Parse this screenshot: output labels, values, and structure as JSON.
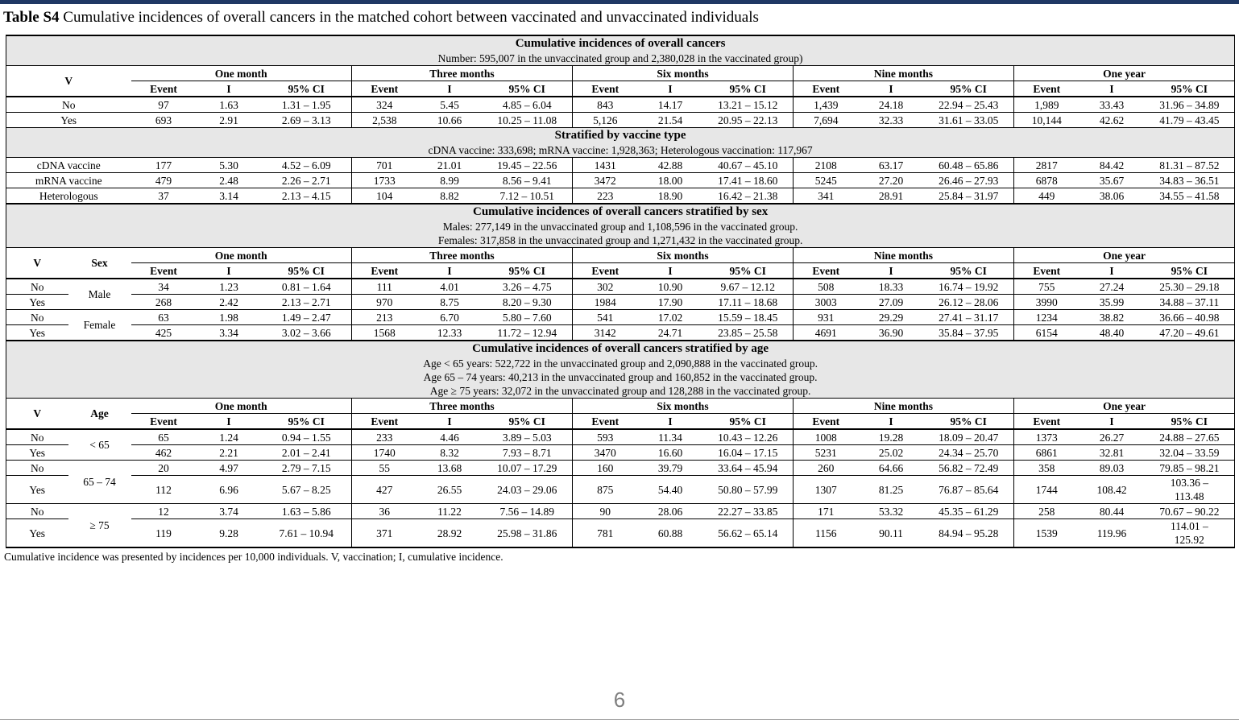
{
  "page": {
    "title_bold": "Table S4",
    "title_rest": " Cumulative incidences of overall cancers in the matched cohort between vaccinated and unvaccinated individuals",
    "footnote": "Cumulative incidence was presented by incidences per 10,000 individuals. V, vaccination; I, cumulative incidence.",
    "page_number": "6",
    "accent_bar_color": "#1f3864",
    "band_background": "#e7e7e7"
  },
  "table": {
    "time_groups": [
      "One month",
      "Three months",
      "Six months",
      "Nine months",
      "One year"
    ],
    "sub_columns": [
      "Event",
      "I",
      "95% CI"
    ],
    "sections": [
      {
        "band": {
          "title": "Cumulative incidences of overall cancers",
          "lines": [
            "Number: 595,007 in the unvaccinated group and 2,380,028 in the vaccinated group)"
          ]
        },
        "header": {
          "labels": [
            "V"
          ]
        },
        "rows": [
          {
            "label": "No",
            "cells": [
              "97",
              "1.63",
              "1.31 – 1.95",
              "324",
              "5.45",
              "4.85 – 6.04",
              "843",
              "14.17",
              "13.21 – 15.12",
              "1,439",
              "24.18",
              "22.94 – 25.43",
              "1,989",
              "33.43",
              "31.96 – 34.89"
            ]
          },
          {
            "label": "Yes",
            "cells": [
              "693",
              "2.91",
              "2.69 – 3.13",
              "2,538",
              "10.66",
              "10.25 – 11.08",
              "5,126",
              "21.54",
              "20.95 – 22.13",
              "7,694",
              "32.33",
              "31.61 – 33.05",
              "10,144",
              "42.62",
              "41.79 – 43.45"
            ]
          }
        ]
      },
      {
        "band": {
          "title": "Stratified by vaccine type",
          "lines": [
            "cDNA vaccine: 333,698; mRNA vaccine: 1,928,363; Heterologous vaccination: 117,967"
          ]
        },
        "rows": [
          {
            "label": "cDNA vaccine",
            "cells": [
              "177",
              "5.30",
              "4.52 – 6.09",
              "701",
              "21.01",
              "19.45 – 22.56",
              "1431",
              "42.88",
              "40.67 – 45.10",
              "2108",
              "63.17",
              "60.48 – 65.86",
              "2817",
              "84.42",
              "81.31 – 87.52"
            ]
          },
          {
            "label": "mRNA vaccine",
            "cells": [
              "479",
              "2.48",
              "2.26 – 2.71",
              "1733",
              "8.99",
              "8.56 – 9.41",
              "3472",
              "18.00",
              "17.41 – 18.60",
              "5245",
              "27.20",
              "26.46 – 27.93",
              "6878",
              "35.67",
              "34.83 – 36.51"
            ]
          },
          {
            "label": "Heterologous",
            "cells": [
              "37",
              "3.14",
              "2.13 – 4.15",
              "104",
              "8.82",
              "7.12 – 10.51",
              "223",
              "18.90",
              "16.42 – 21.38",
              "341",
              "28.91",
              "25.84 – 31.97",
              "449",
              "38.06",
              "34.55 – 41.58"
            ]
          }
        ]
      },
      {
        "band": {
          "title": "Cumulative incidences of overall cancers stratified by sex",
          "lines": [
            "Males: 277,149 in the unvaccinated group and 1,108,596 in the vaccinated group.",
            "Females: 317,858 in the unvaccinated group and 1,271,432 in the vaccinated group."
          ]
        },
        "header": {
          "labels": [
            "V",
            "Sex"
          ]
        },
        "groups": [
          {
            "name": "Male",
            "rows": [
              {
                "label": "No",
                "cells": [
                  "34",
                  "1.23",
                  "0.81 – 1.64",
                  "111",
                  "4.01",
                  "3.26 – 4.75",
                  "302",
                  "10.90",
                  "9.67 – 12.12",
                  "508",
                  "18.33",
                  "16.74 – 19.92",
                  "755",
                  "27.24",
                  "25.30 – 29.18"
                ]
              },
              {
                "label": "Yes",
                "cells": [
                  "268",
                  "2.42",
                  "2.13 – 2.71",
                  "970",
                  "8.75",
                  "8.20 – 9.30",
                  "1984",
                  "17.90",
                  "17.11 – 18.68",
                  "3003",
                  "27.09",
                  "26.12 – 28.06",
                  "3990",
                  "35.99",
                  "34.88 – 37.11"
                ]
              }
            ]
          },
          {
            "name": "Female",
            "rows": [
              {
                "label": "No",
                "cells": [
                  "63",
                  "1.98",
                  "1.49 – 2.47",
                  "213",
                  "6.70",
                  "5.80 – 7.60",
                  "541",
                  "17.02",
                  "15.59 – 18.45",
                  "931",
                  "29.29",
                  "27.41 – 31.17",
                  "1234",
                  "38.82",
                  "36.66 – 40.98"
                ]
              },
              {
                "label": "Yes",
                "cells": [
                  "425",
                  "3.34",
                  "3.02 – 3.66",
                  "1568",
                  "12.33",
                  "11.72 – 12.94",
                  "3142",
                  "24.71",
                  "23.85 – 25.58",
                  "4691",
                  "36.90",
                  "35.84 – 37.95",
                  "6154",
                  "48.40",
                  "47.20 – 49.61"
                ]
              }
            ]
          }
        ]
      },
      {
        "band": {
          "title": "Cumulative incidences of overall cancers stratified by age",
          "lines": [
            "Age < 65 years: 522,722 in the unvaccinated group and 2,090,888 in the vaccinated group.",
            "Age 65 – 74 years: 40,213 in the unvaccinated group and 160,852 in the vaccinated group.",
            "Age ≥ 75 years: 32,072 in the unvaccinated group and 128,288 in the vaccinated group."
          ]
        },
        "header": {
          "labels": [
            "V",
            "Age"
          ]
        },
        "groups": [
          {
            "name": "< 65",
            "rows": [
              {
                "label": "No",
                "cells": [
                  "65",
                  "1.24",
                  "0.94 – 1.55",
                  "233",
                  "4.46",
                  "3.89 – 5.03",
                  "593",
                  "11.34",
                  "10.43 – 12.26",
                  "1008",
                  "19.28",
                  "18.09 – 20.47",
                  "1373",
                  "26.27",
                  "24.88 – 27.65"
                ]
              },
              {
                "label": "Yes",
                "cells": [
                  "462",
                  "2.21",
                  "2.01 – 2.41",
                  "1740",
                  "8.32",
                  "7.93 – 8.71",
                  "3470",
                  "16.60",
                  "16.04 – 17.15",
                  "5231",
                  "25.02",
                  "24.34 – 25.70",
                  "6861",
                  "32.81",
                  "32.04 – 33.59"
                ]
              }
            ]
          },
          {
            "name": "65 – 74",
            "rows": [
              {
                "label": "No",
                "cells": [
                  "20",
                  "4.97",
                  "2.79 – 7.15",
                  "55",
                  "13.68",
                  "10.07 – 17.29",
                  "160",
                  "39.79",
                  "33.64 – 45.94",
                  "260",
                  "64.66",
                  "56.82 – 72.49",
                  "358",
                  "89.03",
                  "79.85 – 98.21"
                ]
              },
              {
                "label": "Yes",
                "cells": [
                  "112",
                  "6.96",
                  "5.67 – 8.25",
                  "427",
                  "26.55",
                  "24.03 – 29.06",
                  "875",
                  "54.40",
                  "50.80 – 57.99",
                  "1307",
                  "81.25",
                  "76.87 – 85.64",
                  "1744",
                  "108.42",
                  "103.36 –\n113.48"
                ]
              }
            ]
          },
          {
            "name": "≥ 75",
            "rows": [
              {
                "label": "No",
                "cells": [
                  "12",
                  "3.74",
                  "1.63 – 5.86",
                  "36",
                  "11.22",
                  "7.56 – 14.89",
                  "90",
                  "28.06",
                  "22.27 – 33.85",
                  "171",
                  "53.32",
                  "45.35 – 61.29",
                  "258",
                  "80.44",
                  "70.67 – 90.22"
                ]
              },
              {
                "label": "Yes",
                "cells": [
                  "119",
                  "9.28",
                  "7.61 – 10.94",
                  "371",
                  "28.92",
                  "25.98 – 31.86",
                  "781",
                  "60.88",
                  "56.62 – 65.14",
                  "1156",
                  "90.11",
                  "84.94 – 95.28",
                  "1539",
                  "119.96",
                  "114.01 –\n125.92"
                ]
              }
            ]
          }
        ]
      }
    ]
  }
}
